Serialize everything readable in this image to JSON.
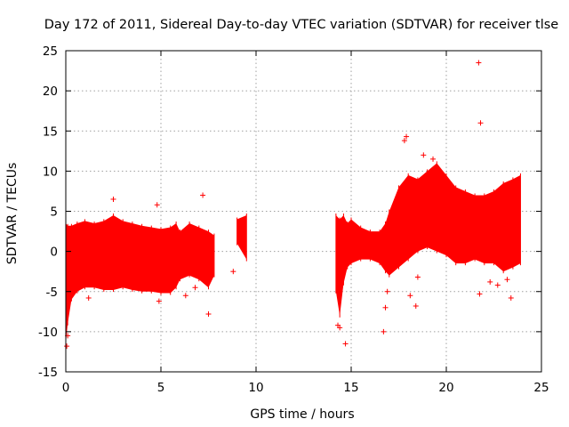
{
  "chart_data": {
    "type": "scatter",
    "title": "Day 172 of 2011, Sidereal Day-to-day VTEC variation (SDTVAR) for receiver tlse",
    "xlabel": "GPS time / hours",
    "ylabel": "SDTVAR / TECUs",
    "xlim": [
      0,
      25
    ],
    "ylim": [
      -15,
      25
    ],
    "xticks": [
      0,
      5,
      10,
      15,
      20,
      25
    ],
    "xtick_labels": [
      "0",
      "5",
      "10",
      "15",
      "20",
      "25"
    ],
    "yticks": [
      -15,
      -10,
      -5,
      0,
      5,
      10,
      15,
      20,
      25
    ],
    "ytick_labels": [
      "-15",
      "-10",
      "-5",
      "0",
      "5",
      "10",
      "15",
      "20",
      "25"
    ],
    "grid": true,
    "marker": "+",
    "color": "#ff0000",
    "series": [
      {
        "name": "SDTVAR",
        "envelope": [
          {
            "x": 0.0,
            "min": -11.5,
            "max": 3.5
          },
          {
            "x": 0.1,
            "min": -9.0,
            "max": 3.2
          },
          {
            "x": 0.3,
            "min": -6.0,
            "max": 3.2
          },
          {
            "x": 0.6,
            "min": -5.0,
            "max": 3.5
          },
          {
            "x": 1.0,
            "min": -4.5,
            "max": 3.8
          },
          {
            "x": 1.5,
            "min": -4.5,
            "max": 3.5
          },
          {
            "x": 2.0,
            "min": -4.8,
            "max": 3.8
          },
          {
            "x": 2.5,
            "min": -4.8,
            "max": 4.5
          },
          {
            "x": 3.0,
            "min": -4.5,
            "max": 3.8
          },
          {
            "x": 3.5,
            "min": -4.8,
            "max": 3.5
          },
          {
            "x": 4.0,
            "min": -5.0,
            "max": 3.2
          },
          {
            "x": 4.5,
            "min": -5.0,
            "max": 3.0
          },
          {
            "x": 5.0,
            "min": -5.2,
            "max": 2.8
          },
          {
            "x": 5.5,
            "min": -5.2,
            "max": 3.0
          },
          {
            "x": 5.8,
            "min": -4.5,
            "max": 3.5
          },
          {
            "x": 6.0,
            "min": -3.5,
            "max": 2.5
          },
          {
            "x": 6.5,
            "min": -3.0,
            "max": 3.5
          },
          {
            "x": 7.0,
            "min": -3.5,
            "max": 3.0
          },
          {
            "x": 7.5,
            "min": -4.5,
            "max": 2.5
          },
          {
            "x": 7.8,
            "min": -3.0,
            "max": 2.0
          }
        ],
        "envelope2": [
          {
            "x": 9.0,
            "min": 1.0,
            "max": 4.0
          },
          {
            "x": 9.5,
            "min": -1.0,
            "max": 4.5
          }
        ],
        "envelope3": [
          {
            "x": 14.2,
            "min": -5.0,
            "max": 4.5
          },
          {
            "x": 14.4,
            "min": -8.0,
            "max": 4.0
          },
          {
            "x": 14.6,
            "min": -4.0,
            "max": 4.5
          },
          {
            "x": 14.8,
            "min": -2.0,
            "max": 3.5
          },
          {
            "x": 15.0,
            "min": -1.5,
            "max": 4.0
          },
          {
            "x": 15.5,
            "min": -1.0,
            "max": 3.0
          },
          {
            "x": 16.0,
            "min": -1.0,
            "max": 2.5
          },
          {
            "x": 16.5,
            "min": -1.5,
            "max": 2.5
          },
          {
            "x": 16.8,
            "min": -2.5,
            "max": 3.5
          },
          {
            "x": 17.0,
            "min": -3.0,
            "max": 5.0
          },
          {
            "x": 17.5,
            "min": -2.0,
            "max": 8.0
          },
          {
            "x": 18.0,
            "min": -1.0,
            "max": 9.5
          },
          {
            "x": 18.5,
            "min": 0.0,
            "max": 9.0
          },
          {
            "x": 19.0,
            "min": 0.5,
            "max": 10.0
          },
          {
            "x": 19.5,
            "min": 0.0,
            "max": 11.0
          },
          {
            "x": 20.0,
            "min": -0.5,
            "max": 9.5
          },
          {
            "x": 20.5,
            "min": -1.5,
            "max": 8.0
          },
          {
            "x": 21.0,
            "min": -1.5,
            "max": 7.5
          },
          {
            "x": 21.5,
            "min": -1.0,
            "max": 7.0
          },
          {
            "x": 22.0,
            "min": -1.5,
            "max": 7.0
          },
          {
            "x": 22.5,
            "min": -1.5,
            "max": 7.5
          },
          {
            "x": 23.0,
            "min": -2.5,
            "max": 8.5
          },
          {
            "x": 23.5,
            "min": -2.0,
            "max": 9.0
          },
          {
            "x": 23.9,
            "min": -1.5,
            "max": 9.5
          }
        ],
        "outliers": [
          [
            0.05,
            -11.8
          ],
          [
            0.1,
            -10.5
          ],
          [
            1.2,
            -5.8
          ],
          [
            2.5,
            6.5
          ],
          [
            4.8,
            5.8
          ],
          [
            4.9,
            -6.2
          ],
          [
            6.3,
            -5.5
          ],
          [
            6.8,
            -4.5
          ],
          [
            7.2,
            7.0
          ],
          [
            7.5,
            -7.8
          ],
          [
            8.8,
            -2.5
          ],
          [
            14.3,
            -9.2
          ],
          [
            14.4,
            -9.5
          ],
          [
            14.7,
            -11.5
          ],
          [
            16.7,
            -10.0
          ],
          [
            16.8,
            -7.0
          ],
          [
            16.9,
            -5.0
          ],
          [
            17.8,
            13.8
          ],
          [
            17.9,
            14.3
          ],
          [
            18.1,
            -5.5
          ],
          [
            18.4,
            -6.8
          ],
          [
            18.5,
            -3.2
          ],
          [
            18.8,
            12.0
          ],
          [
            19.3,
            11.5
          ],
          [
            21.7,
            23.5
          ],
          [
            21.8,
            16.0
          ],
          [
            21.75,
            -5.3
          ],
          [
            22.3,
            -3.8
          ],
          [
            22.7,
            -4.2
          ],
          [
            23.2,
            -3.5
          ],
          [
            23.4,
            -5.8
          ]
        ]
      }
    ]
  }
}
